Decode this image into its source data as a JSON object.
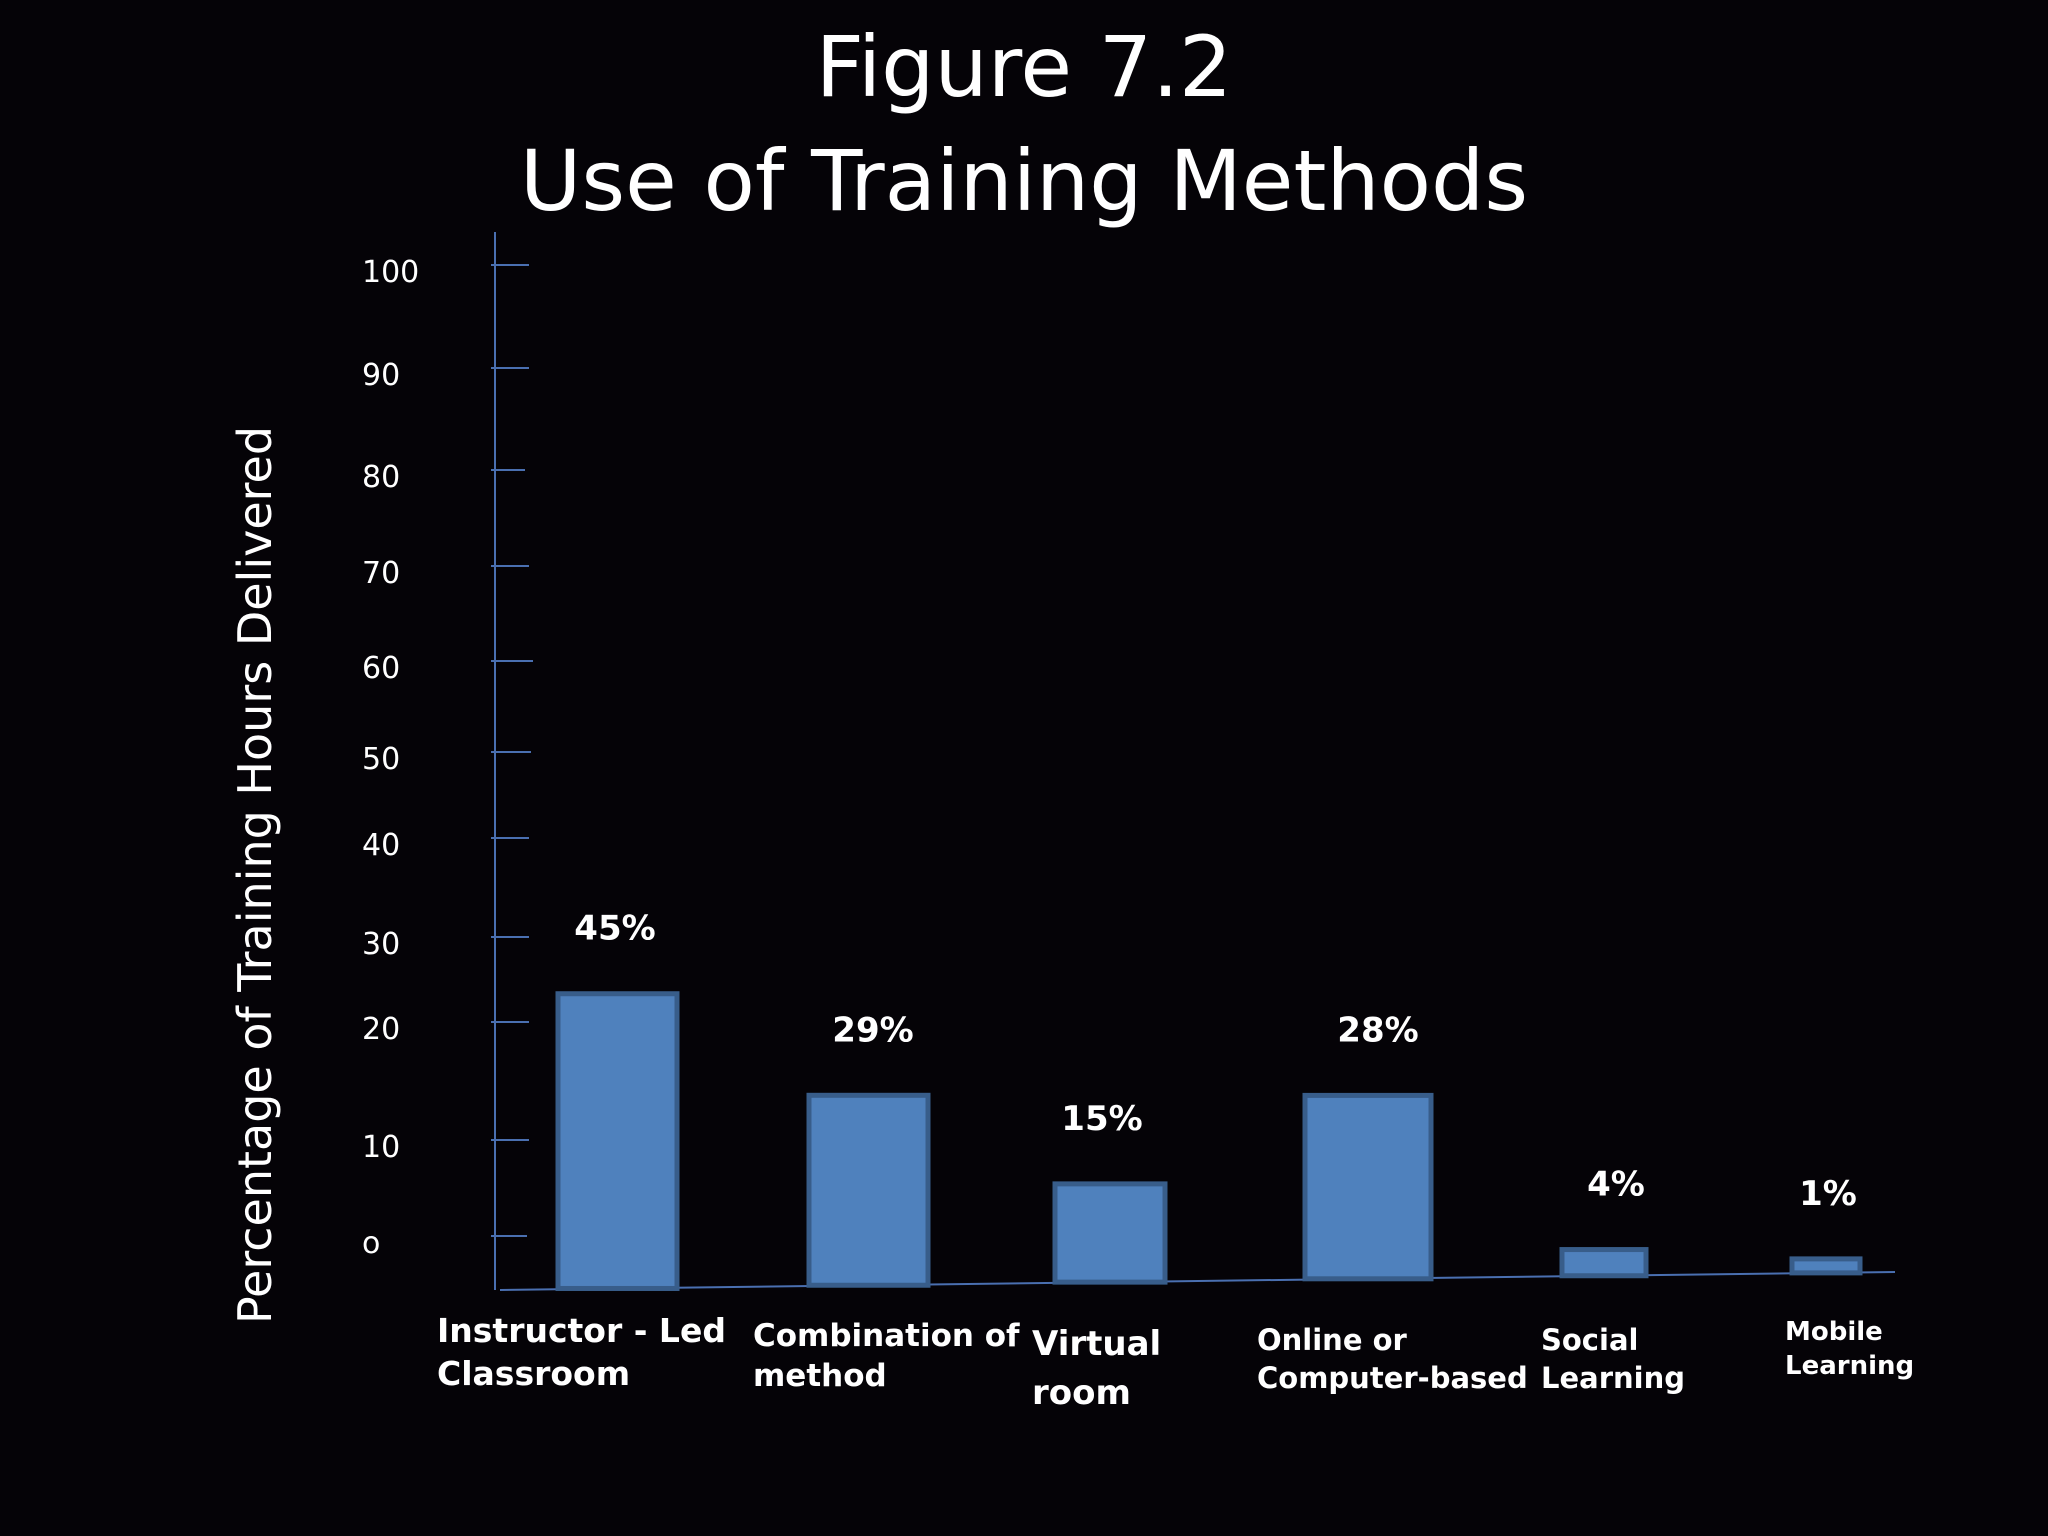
{
  "title_line1": "Figure 7.2",
  "title_line2": "Use of Training Methods",
  "colors": {
    "background": "#050307",
    "bar_fill": "#4f81bd",
    "bar_stroke": "#385d8a",
    "axis": "#4a6fb0",
    "text": "#ffffff"
  },
  "chart_data": {
    "type": "bar",
    "title": "Figure 7.2 Use of Training Methods",
    "xlabel": "",
    "ylabel": "Percentage of Training Hours Delivered",
    "ylim": [
      0,
      100
    ],
    "yticks": [
      "100",
      "90",
      "80",
      "70",
      "60",
      "50",
      "40",
      "30",
      "20",
      "10",
      "o"
    ],
    "categories": [
      {
        "line1": "Instructor - Led",
        "line2": "Classroom"
      },
      {
        "line1": "Combination of",
        "line2": "method"
      },
      {
        "line1": "Virtual",
        "line2": "room"
      },
      {
        "line1": "Online or",
        "line2": "Computer-based"
      },
      {
        "line1": "Social",
        "line2": "Learning"
      },
      {
        "line1": "Mobile",
        "line2": "Learning"
      }
    ],
    "values": [
      45,
      29,
      15,
      28,
      4,
      1
    ],
    "data_labels": [
      "45%",
      "29%",
      "15%",
      "28%",
      "4%",
      "1%"
    ],
    "grid": false,
    "legend": "none"
  }
}
